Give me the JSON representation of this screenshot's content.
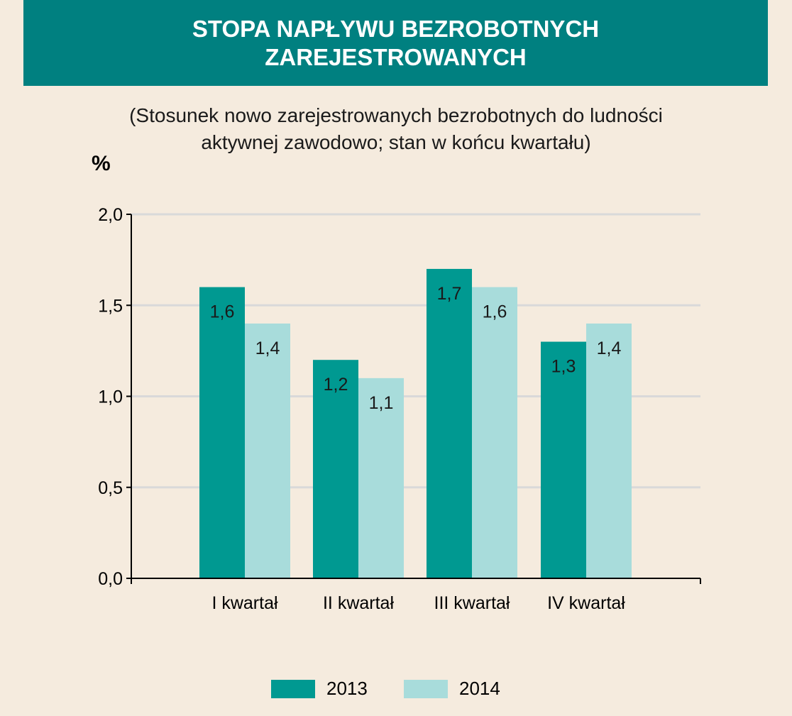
{
  "header": {
    "title": "STOPA NAPŁYWU BEZROBOTNYCH ZAREJESTROWANYCH"
  },
  "subtitle": "(Stosunek nowo zarejestrowanych bezrobotnych do ludności aktywnej zawodowo; stan w końcu kwartału)",
  "unit": "%",
  "colors": {
    "background": "#f5ebde",
    "header": "#008080",
    "series_2013": "#009991",
    "series_2014": "#a8dcdb",
    "grid": "#d9d9d9"
  },
  "chart_data": {
    "type": "bar",
    "categories": [
      "I kwartał",
      "II kwartał",
      "III kwartał",
      "IV kwartał"
    ],
    "series": [
      {
        "name": "2013",
        "values": [
          1.6,
          1.2,
          1.7,
          1.3
        ],
        "labels": [
          "1,6",
          "1,2",
          "1,7",
          "1,3"
        ]
      },
      {
        "name": "2014",
        "values": [
          1.4,
          1.1,
          1.6,
          1.4
        ],
        "labels": [
          "1,4",
          "1,1",
          "1,6",
          "1,4"
        ]
      }
    ],
    "ylabel": "%",
    "ylim": [
      0,
      2
    ],
    "yticks": [
      0,
      0.5,
      1,
      1.5,
      2
    ],
    "ytick_labels": [
      "0,0",
      "0,5",
      "1,0",
      "1,5",
      "2,0"
    ],
    "grid": true,
    "legend": "bottom"
  }
}
